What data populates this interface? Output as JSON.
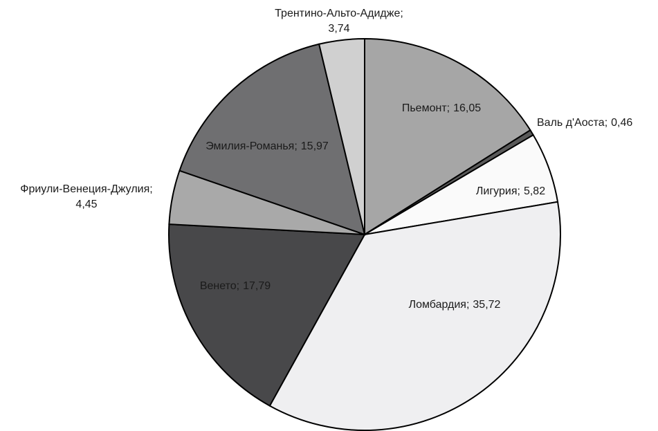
{
  "chart_data": {
    "type": "pie",
    "categories": [
      "Пьемонт;",
      "Валь д'Аоста;",
      "Лигурия;",
      "Ломбардия;",
      "Венето;",
      "Фриули-Венеция-Джулия;",
      "Эмилия-Романья;",
      "Трентино-Альто-Адидже;"
    ],
    "values": [
      16.05,
      0.46,
      5.82,
      35.72,
      17.79,
      4.45,
      15.97,
      3.74
    ],
    "value_labels": [
      "16,05",
      "0,46",
      "5,82",
      "35,72",
      "17,79",
      "4,45",
      "15,97",
      "3,74"
    ],
    "colors": [
      "#a6a6a6",
      "#5a5a5a",
      "#fafafa",
      "#efeff1",
      "#48484a",
      "#a9a9a9",
      "#6f6f71",
      "#d0d0d0"
    ]
  }
}
